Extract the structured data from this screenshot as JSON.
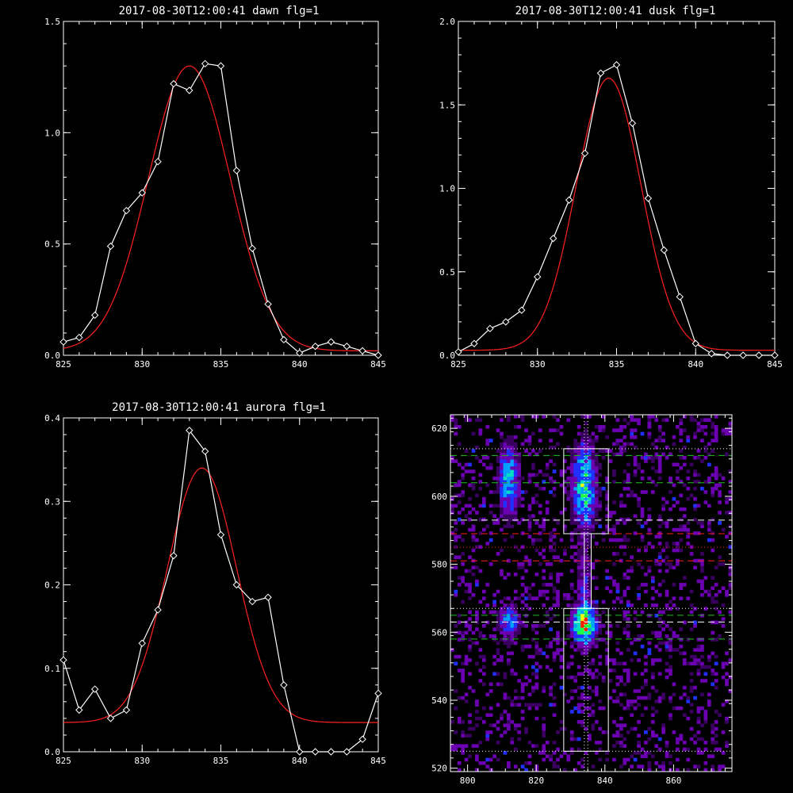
{
  "chart_data": [
    {
      "type": "line",
      "title": "2017-08-30T12:00:41 dawn flg=1",
      "xlim": [
        825,
        845
      ],
      "ylim": [
        0,
        1.5
      ],
      "xticks": [
        825,
        830,
        835,
        840,
        845
      ],
      "yticks": [
        0.0,
        0.5,
        1.0,
        1.5
      ],
      "xtick_labels": [
        "825",
        "830",
        "835",
        "840",
        "845"
      ],
      "ytick_labels": [
        "0.0",
        "0.5",
        "1.0",
        "1.5"
      ],
      "series": [
        {
          "color": "#ffffff",
          "marker": "diamond",
          "x": [
            825,
            826,
            827,
            828,
            829,
            830,
            831,
            832,
            833,
            834,
            835,
            836,
            837,
            838,
            839,
            840,
            841,
            842,
            843,
            844,
            845
          ],
          "y": [
            0.06,
            0.08,
            0.18,
            0.49,
            0.65,
            0.73,
            0.87,
            1.22,
            1.19,
            1.31,
            1.3,
            0.83,
            0.48,
            0.23,
            0.07,
            0.01,
            0.04,
            0.06,
            0.04,
            0.02,
            0.0
          ]
        },
        {
          "color": "#ff2020",
          "fit": true,
          "gauss": {
            "amp": 1.28,
            "center": 833.0,
            "sigma": 2.6,
            "base": 0.02
          }
        }
      ]
    },
    {
      "type": "line",
      "title": "2017-08-30T12:00:41 dusk flg=1",
      "xlim": [
        825,
        845
      ],
      "ylim": [
        0,
        2.0
      ],
      "xticks": [
        825,
        830,
        835,
        840,
        845
      ],
      "yticks": [
        0.0,
        0.5,
        1.0,
        1.5,
        2.0
      ],
      "xtick_labels": [
        "825",
        "830",
        "835",
        "840",
        "845"
      ],
      "ytick_labels": [
        "0.0",
        "0.5",
        "1.0",
        "1.5",
        "2.0"
      ],
      "series": [
        {
          "color": "#ffffff",
          "marker": "diamond",
          "x": [
            825,
            826,
            827,
            828,
            829,
            830,
            831,
            832,
            833,
            834,
            835,
            836,
            837,
            838,
            839,
            840,
            841,
            842,
            843,
            844,
            845
          ],
          "y": [
            0.02,
            0.07,
            0.16,
            0.2,
            0.27,
            0.47,
            0.7,
            0.93,
            1.21,
            1.69,
            1.74,
            1.39,
            0.94,
            0.63,
            0.35,
            0.07,
            0.01,
            0.0,
            0.0,
            0.0,
            0.0
          ]
        },
        {
          "color": "#ff2020",
          "fit": true,
          "gauss": {
            "amp": 1.63,
            "center": 834.5,
            "sigma": 2.05,
            "base": 0.03
          }
        }
      ]
    },
    {
      "type": "line",
      "title": "2017-08-30T12:00:41 aurora flg=1",
      "xlim": [
        825,
        845
      ],
      "ylim": [
        0,
        0.4
      ],
      "xticks": [
        825,
        830,
        835,
        840,
        845
      ],
      "yticks": [
        0.0,
        0.1,
        0.2,
        0.3,
        0.4
      ],
      "xtick_labels": [
        "825",
        "830",
        "835",
        "840",
        "845"
      ],
      "ytick_labels": [
        "0.0",
        "0.1",
        "0.2",
        "0.3",
        "0.4"
      ],
      "series": [
        {
          "color": "#ffffff",
          "marker": "diamond",
          "x": [
            825,
            826,
            827,
            828,
            829,
            830,
            831,
            832,
            833,
            834,
            835,
            836,
            837,
            838,
            839,
            840,
            841,
            842,
            843,
            844,
            845
          ],
          "y": [
            0.11,
            0.05,
            0.075,
            0.04,
            0.05,
            0.13,
            0.17,
            0.235,
            0.385,
            0.36,
            0.26,
            0.2,
            0.18,
            0.185,
            0.08,
            0.0,
            0.0,
            0.0,
            0.0,
            0.015,
            0.07
          ]
        },
        {
          "color": "#ff2020",
          "fit": true,
          "gauss": {
            "amp": 0.305,
            "center": 833.8,
            "sigma": 2.2,
            "base": 0.035
          }
        }
      ]
    },
    {
      "type": "heatmap",
      "title": "",
      "xlim": [
        795,
        877
      ],
      "ylim": [
        519,
        624
      ],
      "xticks": [
        800,
        820,
        840,
        860
      ],
      "yticks": [
        520,
        540,
        560,
        580,
        600,
        620
      ],
      "xtick_labels": [
        "800",
        "820",
        "840",
        "860"
      ],
      "ytick_labels": [
        "520",
        "540",
        "560",
        "580",
        "600",
        "620"
      ],
      "colormap": [
        "#000000",
        "#3a0060",
        "#6a00b0",
        "#2030ff",
        "#00a0ff",
        "#00e0c0",
        "#20ff40",
        "#f0ff00",
        "#ff2000"
      ],
      "blobs": [
        {
          "x": 812,
          "y": 605,
          "sx": 2.2,
          "sy": 8,
          "amp": 0.6
        },
        {
          "x": 812,
          "y": 563,
          "sx": 2.2,
          "sy": 4,
          "amp": 0.55
        },
        {
          "x": 834,
          "y": 603,
          "sx": 2.5,
          "sy": 9,
          "amp": 0.75
        },
        {
          "x": 834,
          "y": 562,
          "sx": 2.5,
          "sy": 4,
          "amp": 1.0
        },
        {
          "x": 834,
          "y": 575,
          "sx": 1.5,
          "sy": 6,
          "amp": 0.35
        }
      ],
      "boxes": [
        {
          "x0": 828,
          "x1": 841,
          "y0": 589,
          "y1": 614
        },
        {
          "x0": 828,
          "x1": 841,
          "y0": 525,
          "y1": 567
        },
        {
          "x0": 834,
          "x1": 836,
          "y0": 567,
          "y1": 589
        }
      ],
      "hlines": [
        {
          "y": 614,
          "color": "#ffffff",
          "style": "dotted"
        },
        {
          "y": 612,
          "color": "#20c020",
          "style": "dashed"
        },
        {
          "y": 604,
          "color": "#20c020",
          "style": "dashed"
        },
        {
          "y": 593,
          "color": "#ffffff",
          "style": "dashed"
        },
        {
          "y": 589,
          "color": "#ff2020",
          "style": "dashed"
        },
        {
          "y": 585,
          "color": "#ff2020",
          "style": "dotted"
        },
        {
          "y": 581,
          "color": "#ff2020",
          "style": "dashed"
        },
        {
          "y": 567,
          "color": "#ffffff",
          "style": "dotted"
        },
        {
          "y": 565,
          "color": "#20c020",
          "style": "dashed"
        },
        {
          "y": 563,
          "color": "#ffffff",
          "style": "dashed"
        },
        {
          "y": 558,
          "color": "#20c020",
          "style": "dashed"
        },
        {
          "y": 525,
          "color": "#ffffff",
          "style": "dotted"
        }
      ],
      "vlines": [
        {
          "x": 834,
          "color": "#ffffff",
          "style": "dotted"
        },
        {
          "x": 835,
          "color": "#ffffff",
          "style": "dotted"
        }
      ]
    }
  ]
}
